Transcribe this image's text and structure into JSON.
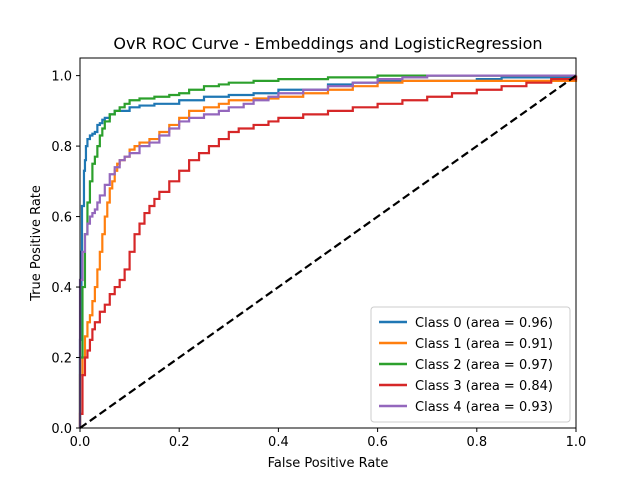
{
  "chart_data": {
    "type": "line",
    "title": "OvR ROC Curve - Embeddings and LogisticRegression",
    "xlabel": "False Positive Rate",
    "ylabel": "True Positive Rate",
    "xlim": [
      0.0,
      1.0
    ],
    "ylim": [
      0.0,
      1.05
    ],
    "xticks": [
      "0.0",
      "0.2",
      "0.4",
      "0.6",
      "0.8",
      "1.0"
    ],
    "yticks": [
      "0.0",
      "0.2",
      "0.4",
      "0.6",
      "0.8",
      "1.0"
    ],
    "grid": false,
    "legend_position": "lower-right",
    "diagonal": {
      "x": [
        0,
        1
      ],
      "y": [
        0,
        1
      ],
      "color": "#000000",
      "style": "dashed"
    },
    "series": [
      {
        "name": "Class 0 (area = 0.96)",
        "color": "#1f77b4",
        "x": [
          0.0,
          0.0,
          0.003,
          0.004,
          0.008,
          0.01,
          0.012,
          0.015,
          0.02,
          0.025,
          0.03,
          0.035,
          0.04,
          0.045,
          0.05,
          0.06,
          0.07,
          0.08,
          0.1,
          0.12,
          0.15,
          0.2,
          0.25,
          0.3,
          0.35,
          0.4,
          0.5,
          0.55,
          0.6,
          0.65,
          0.7,
          0.8,
          0.85,
          1.0
        ],
        "y": [
          0.0,
          0.25,
          0.5,
          0.63,
          0.73,
          0.76,
          0.8,
          0.82,
          0.83,
          0.835,
          0.84,
          0.86,
          0.865,
          0.875,
          0.88,
          0.89,
          0.9,
          0.9,
          0.91,
          0.915,
          0.92,
          0.93,
          0.94,
          0.945,
          0.95,
          0.96,
          0.975,
          0.98,
          0.985,
          0.985,
          0.985,
          0.99,
          0.995,
          1.0
        ]
      },
      {
        "name": "Class 1 (area = 0.91)",
        "color": "#ff7f0e",
        "x": [
          0.0,
          0.0,
          0.005,
          0.01,
          0.015,
          0.02,
          0.025,
          0.03,
          0.035,
          0.04,
          0.045,
          0.05,
          0.055,
          0.06,
          0.065,
          0.07,
          0.075,
          0.08,
          0.09,
          0.1,
          0.11,
          0.12,
          0.14,
          0.16,
          0.18,
          0.2,
          0.22,
          0.25,
          0.28,
          0.3,
          0.35,
          0.4,
          0.45,
          0.5,
          0.55,
          0.6,
          0.65,
          1.0
        ],
        "y": [
          0.0,
          0.15,
          0.2,
          0.26,
          0.3,
          0.32,
          0.36,
          0.4,
          0.45,
          0.5,
          0.55,
          0.6,
          0.64,
          0.68,
          0.7,
          0.73,
          0.75,
          0.76,
          0.77,
          0.79,
          0.8,
          0.81,
          0.82,
          0.84,
          0.86,
          0.88,
          0.9,
          0.91,
          0.92,
          0.93,
          0.935,
          0.94,
          0.95,
          0.96,
          0.97,
          0.98,
          0.985,
          1.0
        ]
      },
      {
        "name": "Class 2 (area = 0.97)",
        "color": "#2ca02c",
        "x": [
          0.0,
          0.0,
          0.005,
          0.01,
          0.015,
          0.02,
          0.025,
          0.03,
          0.035,
          0.04,
          0.045,
          0.05,
          0.06,
          0.07,
          0.08,
          0.09,
          0.1,
          0.12,
          0.15,
          0.18,
          0.2,
          0.22,
          0.25,
          0.28,
          0.3,
          0.35,
          0.4,
          0.45,
          0.5,
          0.55,
          0.6,
          0.65,
          1.0
        ],
        "y": [
          0.0,
          0.2,
          0.4,
          0.55,
          0.64,
          0.7,
          0.75,
          0.77,
          0.8,
          0.83,
          0.85,
          0.87,
          0.89,
          0.9,
          0.91,
          0.92,
          0.93,
          0.935,
          0.94,
          0.945,
          0.95,
          0.96,
          0.97,
          0.975,
          0.98,
          0.985,
          0.99,
          0.99,
          0.995,
          0.995,
          1.0,
          1.0,
          1.0
        ]
      },
      {
        "name": "Class 3 (area = 0.84)",
        "color": "#d62728",
        "x": [
          0.0,
          0.0,
          0.005,
          0.01,
          0.015,
          0.02,
          0.025,
          0.03,
          0.04,
          0.05,
          0.06,
          0.07,
          0.08,
          0.09,
          0.1,
          0.11,
          0.12,
          0.13,
          0.14,
          0.15,
          0.16,
          0.18,
          0.2,
          0.22,
          0.24,
          0.26,
          0.28,
          0.3,
          0.32,
          0.35,
          0.38,
          0.4,
          0.45,
          0.5,
          0.55,
          0.6,
          0.65,
          0.7,
          0.75,
          0.8,
          0.85,
          0.9,
          0.95,
          1.0
        ],
        "y": [
          0.0,
          0.04,
          0.15,
          0.2,
          0.22,
          0.25,
          0.28,
          0.3,
          0.33,
          0.35,
          0.38,
          0.4,
          0.42,
          0.45,
          0.5,
          0.55,
          0.58,
          0.61,
          0.63,
          0.65,
          0.67,
          0.7,
          0.73,
          0.76,
          0.78,
          0.8,
          0.82,
          0.84,
          0.85,
          0.86,
          0.87,
          0.88,
          0.89,
          0.9,
          0.91,
          0.92,
          0.93,
          0.94,
          0.95,
          0.96,
          0.97,
          0.98,
          0.99,
          1.0
        ]
      },
      {
        "name": "Class 4 (area = 0.93)",
        "color": "#9467bd",
        "x": [
          0.0,
          0.0,
          0.005,
          0.01,
          0.015,
          0.02,
          0.025,
          0.03,
          0.035,
          0.04,
          0.05,
          0.06,
          0.07,
          0.08,
          0.09,
          0.1,
          0.12,
          0.14,
          0.16,
          0.18,
          0.2,
          0.22,
          0.25,
          0.28,
          0.3,
          0.33,
          0.35,
          0.38,
          0.4,
          0.45,
          0.5,
          0.55,
          0.6,
          0.65,
          0.7,
          0.8,
          1.0
        ],
        "y": [
          0.0,
          0.42,
          0.5,
          0.55,
          0.58,
          0.6,
          0.61,
          0.62,
          0.64,
          0.66,
          0.69,
          0.72,
          0.74,
          0.76,
          0.77,
          0.78,
          0.8,
          0.81,
          0.83,
          0.85,
          0.87,
          0.88,
          0.89,
          0.9,
          0.91,
          0.92,
          0.93,
          0.94,
          0.95,
          0.96,
          0.97,
          0.98,
          0.99,
          0.995,
          1.0,
          1.0,
          1.0
        ]
      }
    ]
  }
}
